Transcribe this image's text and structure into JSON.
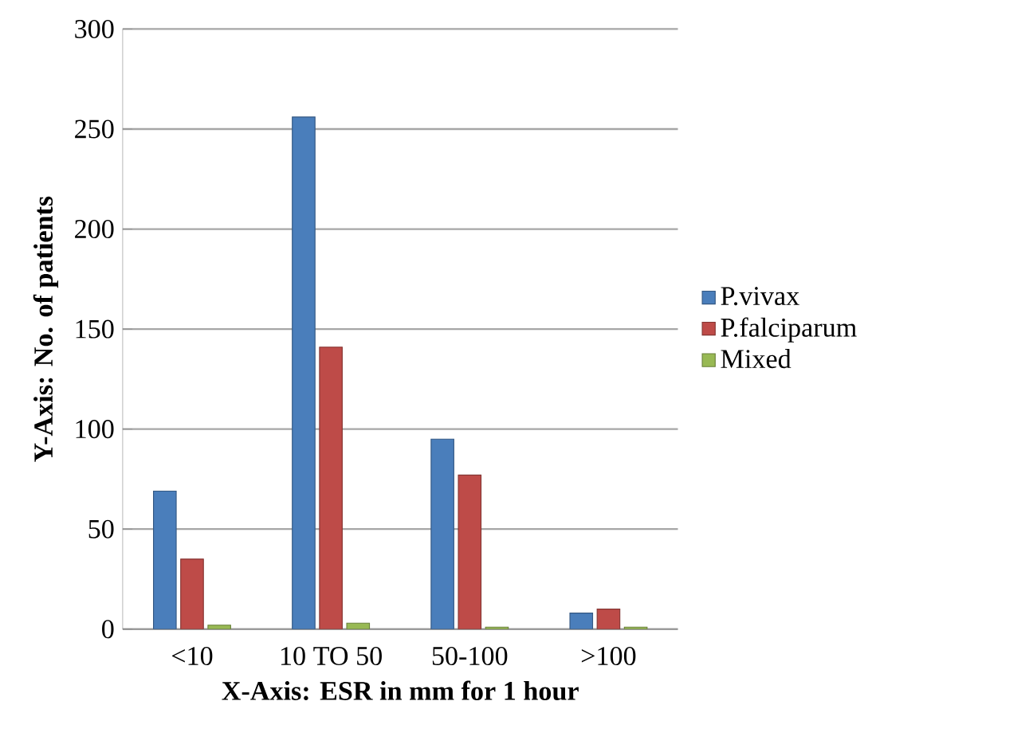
{
  "chart_data": {
    "type": "bar",
    "xlabel": "X-Axis: ESR in mm for 1 hour",
    "ylabel": "Y-Axis: No. of patients",
    "categories": [
      "<10",
      "10 TO 50",
      "50-100",
      ">100"
    ],
    "series": [
      {
        "name": "P.vivax",
        "color": "#4a7ebb",
        "values": [
          69,
          256,
          95,
          8
        ]
      },
      {
        "name": "P.falciparum",
        "color": "#be4b48",
        "values": [
          35,
          141,
          77,
          10
        ]
      },
      {
        "name": "Mixed",
        "color": "#98b954",
        "values": [
          2,
          3,
          1,
          1
        ]
      }
    ],
    "ylim": [
      0,
      300
    ],
    "yticks": [
      0,
      50,
      100,
      150,
      200,
      250,
      300
    ],
    "grid": "y",
    "legend": "right"
  }
}
